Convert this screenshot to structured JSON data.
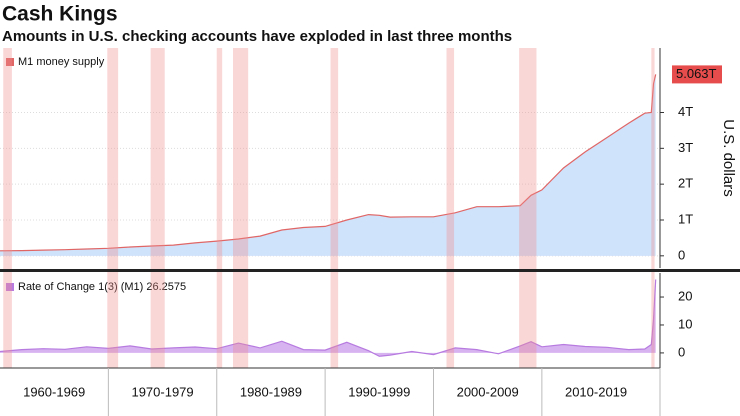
{
  "chart_data": [
    {
      "type": "area",
      "title": "Cash Kings",
      "subtitle": "Amounts in U.S. checking accounts have exploded in last three months",
      "y_label": "U.S. dollars",
      "series": [
        {
          "name": "M1 money supply",
          "color": "#e06666",
          "fill": "#cfe3fb",
          "x": [
            1960,
            1962,
            1964,
            1966,
            1968,
            1970,
            1972,
            1974,
            1976,
            1978,
            1980,
            1982,
            1984,
            1986,
            1988,
            1990,
            1992,
            1994,
            1995,
            1996,
            1998,
            2000,
            2002,
            2004,
            2006,
            2008,
            2009,
            2010,
            2012,
            2014,
            2016,
            2018,
            2019.5,
            2020.1,
            2020.3,
            2020.5
          ],
          "values": [
            0.14,
            0.145,
            0.16,
            0.17,
            0.19,
            0.21,
            0.245,
            0.275,
            0.3,
            0.36,
            0.41,
            0.47,
            0.55,
            0.72,
            0.79,
            0.82,
            1.0,
            1.15,
            1.13,
            1.08,
            1.09,
            1.09,
            1.2,
            1.37,
            1.37,
            1.4,
            1.69,
            1.84,
            2.45,
            2.9,
            3.3,
            3.7,
            3.98,
            4.0,
            4.8,
            5.063
          ],
          "value_labels": [
            null,
            null,
            null,
            null,
            null,
            null,
            null,
            null,
            null,
            null,
            null,
            null,
            null,
            null,
            null,
            null,
            null,
            null,
            null,
            null,
            null,
            null,
            null,
            null,
            null,
            null,
            null,
            null,
            null,
            null,
            null,
            null,
            null,
            null,
            null,
            "5.063T"
          ]
        }
      ],
      "xlim": [
        1960,
        2020.9
      ],
      "ylim": [
        -0.34,
        5.8
      ],
      "yticks": [
        0,
        {
          "value": 1,
          "label": "1T"
        },
        {
          "value": 2,
          "label": "2T"
        },
        {
          "value": 3,
          "label": "3T"
        },
        {
          "value": 4,
          "label": "4T"
        }
      ],
      "recessions": [
        [
          1960.3,
          1961.1
        ],
        [
          1969.9,
          1970.9
        ],
        [
          1973.9,
          1975.2
        ],
        [
          1980.0,
          1980.5
        ],
        [
          1981.5,
          1982.9
        ],
        [
          1990.5,
          1991.2
        ],
        [
          2001.2,
          2001.9
        ],
        [
          2007.9,
          2009.5
        ],
        [
          2020.1,
          2020.4
        ]
      ],
      "grid": true
    },
    {
      "type": "area",
      "series": [
        {
          "name": "Rate of Change 1(3) (M1) 26.2575",
          "color": "#b77be0",
          "fill": "#d7b3f0",
          "x": [
            1960,
            1962,
            1964,
            1966,
            1968,
            1970,
            1972,
            1974,
            1976,
            1978,
            1980,
            1982,
            1984,
            1986,
            1988,
            1990,
            1992,
            1994,
            1995,
            1996,
            1998,
            2000,
            2002,
            2004,
            2006,
            2008,
            2009,
            2010,
            2012,
            2014,
            2016,
            2018,
            2019.5,
            2020.1,
            2020.3,
            2020.5
          ],
          "values": [
            0.5,
            1.2,
            1.5,
            1.3,
            2.2,
            1.6,
            2.5,
            1.4,
            1.8,
            2.1,
            1.5,
            3.5,
            1.8,
            4.2,
            1.2,
            1.0,
            3.8,
            0.8,
            -1.2,
            -0.8,
            0.5,
            -0.6,
            1.8,
            1.2,
            -0.3,
            2.5,
            4.0,
            2.2,
            3.0,
            2.3,
            2.0,
            1.2,
            1.4,
            3.0,
            12.0,
            26.2575
          ]
        }
      ],
      "xlim": [
        1960,
        2020.9
      ],
      "ylim": [
        -5.4,
        28.6
      ],
      "yticks": [
        0,
        10,
        20
      ],
      "xticks": [
        {
          "value": 1960,
          "label": "1960-1969"
        },
        {
          "value": 1970,
          "label": "1970-1979"
        },
        {
          "value": 1980,
          "label": "1980-1989"
        },
        {
          "value": 1990,
          "label": "1990-1999"
        },
        {
          "value": 2000,
          "label": "2000-2009"
        },
        {
          "value": 2010,
          "label": "2010-2019"
        }
      ]
    }
  ]
}
